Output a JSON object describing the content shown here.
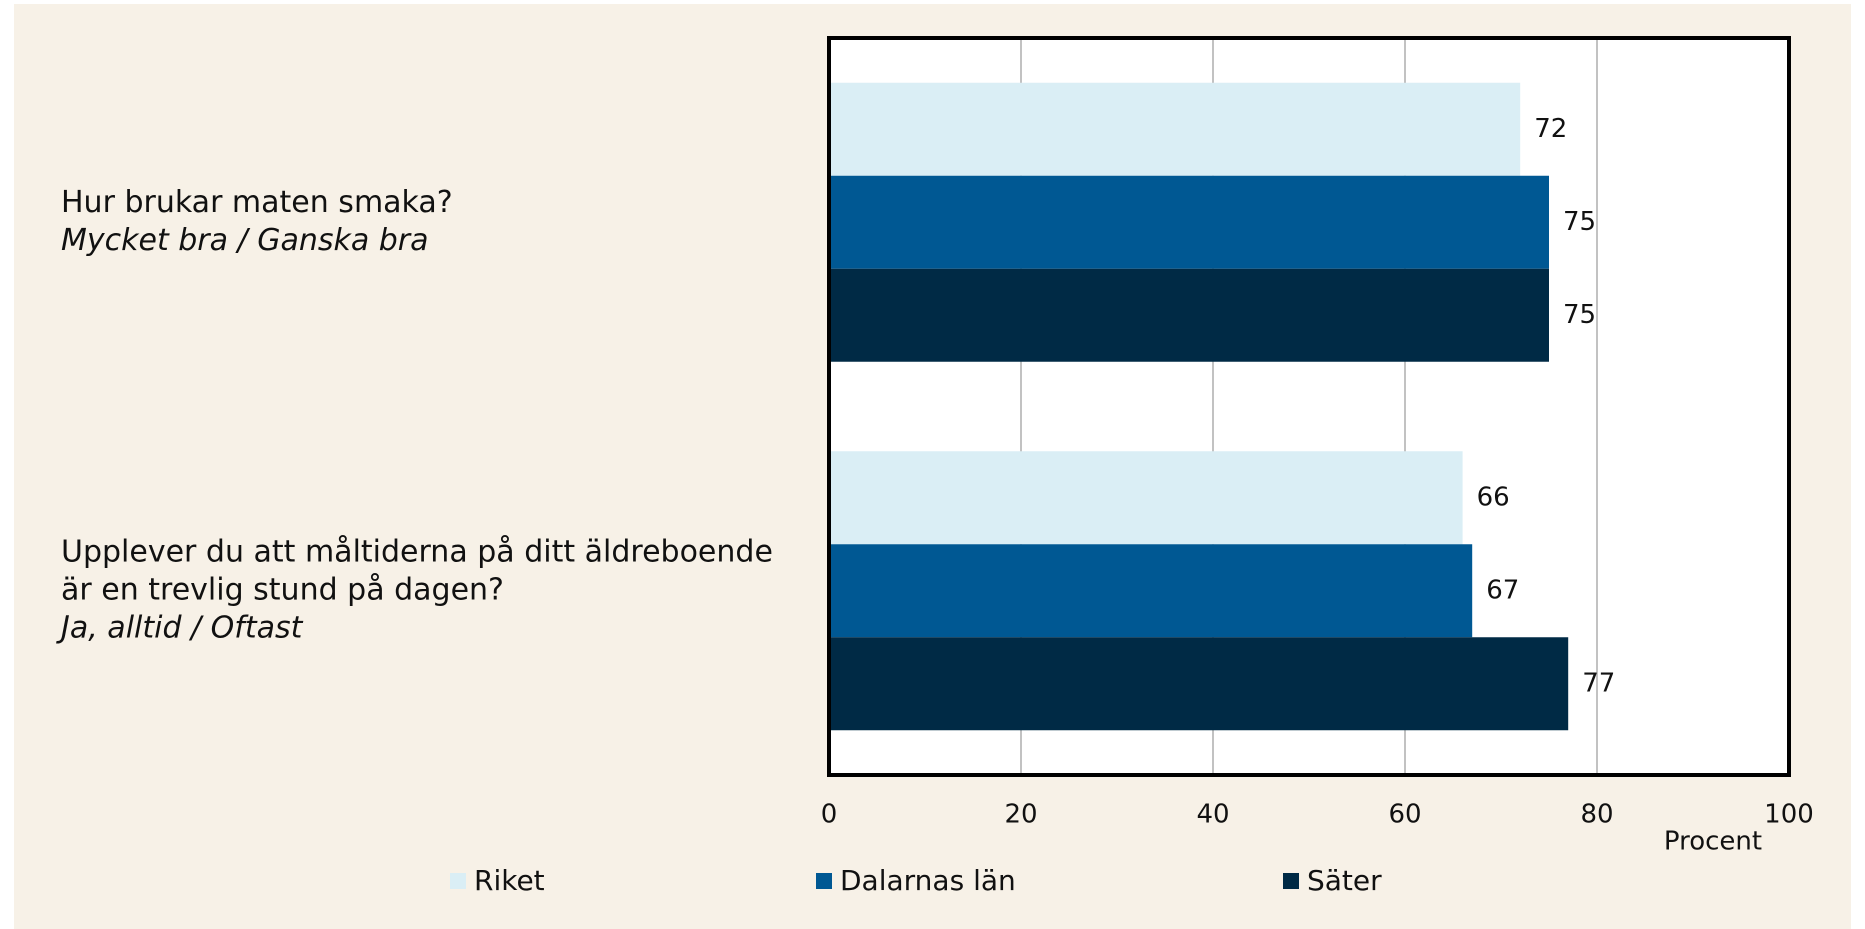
{
  "chart_data": {
    "type": "hbar",
    "categories": [
      [
        "Hur brukar maten smaka?"
      ],
      [
        "Upplever du att måltiderna på ditt äldreboende",
        "är en trevlig stund på dagen?"
      ]
    ],
    "category_subtitles": [
      "Mycket bra / Ganska bra",
      "Ja, alltid / Oftast"
    ],
    "series": [
      {
        "name": "Riket",
        "color": "#daeef5",
        "values": [
          72,
          66
        ]
      },
      {
        "name": "Dalarnas län",
        "color": "#005893",
        "values": [
          75,
          67
        ]
      },
      {
        "name": "Säter",
        "color": "#002a45",
        "values": [
          75,
          77
        ]
      }
    ],
    "xlabel": "Procent",
    "xlim": [
      0,
      100
    ],
    "xticks": [
      0,
      20,
      40,
      60,
      80,
      100
    ],
    "grid": true,
    "legend": "bottom"
  }
}
